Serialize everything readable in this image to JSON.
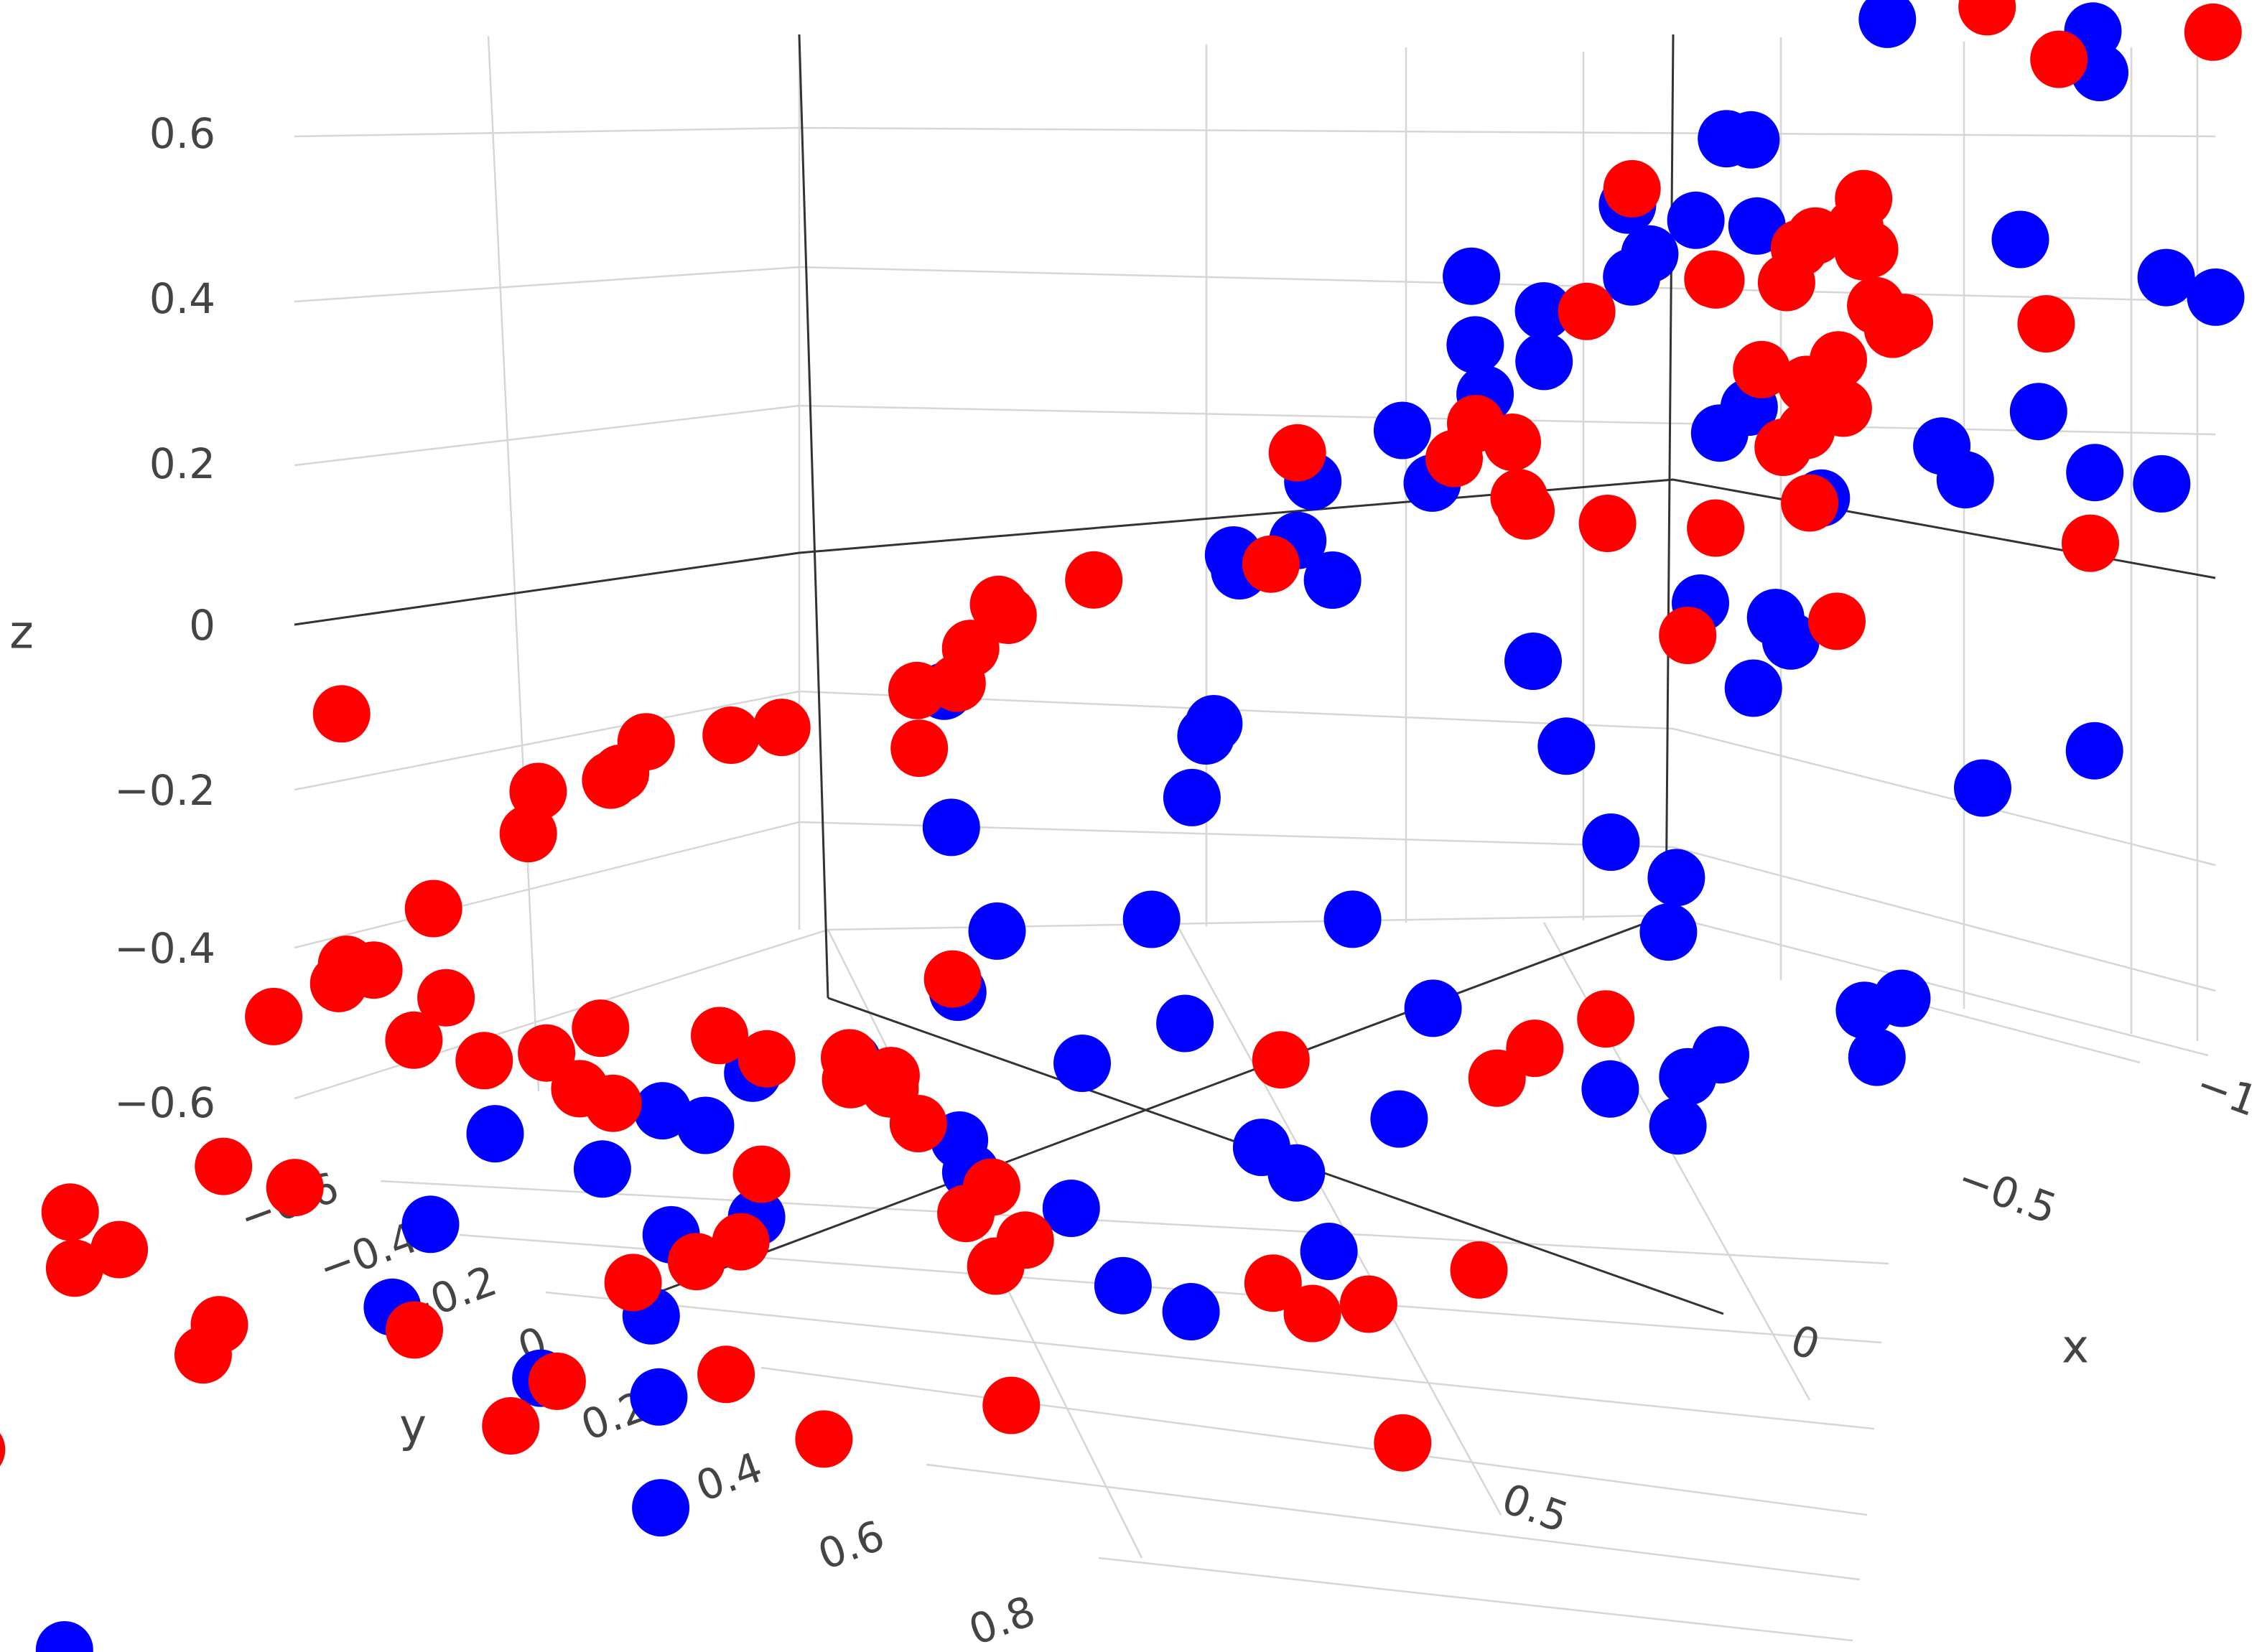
{
  "chart_data": {
    "type": "scatter",
    "projection": "3d",
    "axes": {
      "x": {
        "label": "x",
        "ticks": [
          "−1",
          "−0.5",
          "0",
          "0.5"
        ]
      },
      "y": {
        "label": "y",
        "ticks": [
          "−0.6",
          "−0.4",
          "−0.2",
          "0",
          "0.2",
          "0.4",
          "0.6",
          "0.8"
        ]
      },
      "z": {
        "label": "z",
        "ticks": [
          "0.6",
          "0.4",
          "0.2",
          "0",
          "−0.2",
          "−0.4",
          "−0.6"
        ]
      }
    },
    "grid": true,
    "legend": "none",
    "colors": {
      "series1": "#0000ff",
      "series2": "#ff0000"
    },
    "series": [
      {
        "color": "#0000ff",
        "points": [
          [
            -0.27,
            0.02,
            0.74
          ],
          [
            -0.27,
            0.02,
            0.64
          ],
          [
            -0.52,
            0.04,
            0.72
          ],
          [
            -0.53,
            0.04,
            0.61
          ],
          [
            -0.62,
            0.11,
            0.58
          ],
          [
            -0.16,
            0.06,
            0.5
          ],
          [
            -0.12,
            0.05,
            0.5
          ],
          [
            -0.1,
            0.13,
            0.45
          ],
          [
            -0.12,
            0.08,
            0.4
          ],
          [
            -0.14,
            0.16,
            0.36
          ],
          [
            -0.12,
            0.02,
            0.36
          ],
          [
            -0.02,
            0.04,
            0.34
          ],
          [
            0.02,
            0.11,
            0.3
          ],
          [
            0.04,
            0.16,
            0.28
          ],
          [
            -0.03,
            0.21,
            0.23
          ],
          [
            0.03,
            0.24,
            0.2
          ],
          [
            -0.18,
            0.28,
            0.3
          ],
          [
            0.15,
            0.07,
            0.34
          ],
          [
            -0.72,
            0.13,
            0.29
          ],
          [
            -0.73,
            0.09,
            0.24
          ],
          [
            -0.3,
            0.21,
            0.15
          ],
          [
            -0.24,
            0.13,
            0.15
          ],
          [
            -0.47,
            0.06,
            0.33
          ],
          [
            0.18,
            0.2,
            0.12
          ],
          [
            0.08,
            0.3,
            0.08
          ],
          [
            0.1,
            0.34,
            0.06
          ],
          [
            -0.77,
            0.02,
            0.28
          ],
          [
            -0.45,
            0.12,
            0.07
          ],
          [
            -0.75,
            0.16,
            0.01
          ],
          [
            -0.72,
            0.2,
            0.05
          ],
          [
            -0.62,
            0.17,
            0.13
          ],
          [
            -0.11,
            0.33,
            0.16
          ],
          [
            0.06,
            0.38,
            0.1
          ],
          [
            0.04,
            0.3,
            0.02
          ],
          [
            -0.37,
            0.17,
            0.03
          ],
          [
            -0.7,
            0.31,
            0.1
          ],
          [
            -0.36,
            0.28,
            -0.06
          ],
          [
            -0.64,
            0.43,
            -0.06
          ],
          [
            -0.92,
            0.1,
            -0.02
          ],
          [
            -1.0,
            0.0,
            -0.12
          ],
          [
            -0.47,
            0.3,
            -0.08
          ],
          [
            -0.32,
            0.41,
            -0.07
          ],
          [
            -0.55,
            0.39,
            -0.14
          ],
          [
            -0.37,
            0.42,
            -0.19
          ],
          [
            0.08,
            0.39,
            -0.15
          ],
          [
            0.2,
            0.28,
            -0.18
          ],
          [
            0.19,
            0.31,
            -0.27
          ],
          [
            -0.48,
            0.47,
            -0.31
          ],
          [
            -0.3,
            0.57,
            -0.35
          ],
          [
            -0.72,
            0.31,
            -0.34
          ],
          [
            -0.79,
            0.26,
            -0.32
          ],
          [
            -0.52,
            0.44,
            -0.38
          ],
          [
            -0.01,
            0.52,
            -0.35
          ],
          [
            -0.64,
            0.55,
            -0.41
          ],
          [
            0.25,
            0.45,
            -0.38
          ],
          [
            0.26,
            0.48,
            -0.45
          ],
          [
            -0.33,
            0.76,
            -0.4
          ],
          [
            -0.2,
            0.75,
            -0.45
          ],
          [
            0.32,
            0.63,
            -0.48
          ],
          [
            0.17,
            0.66,
            -0.46
          ],
          [
            -0.27,
            0.93,
            -0.47
          ],
          [
            0.33,
            0.71,
            -0.49
          ],
          [
            0.27,
            0.82,
            -0.52
          ],
          [
            -0.06,
            0.95,
            -0.55
          ],
          [
            0.21,
            0.77,
            -0.49
          ],
          [
            0.05,
            0.94,
            -0.57
          ],
          [
            -0.33,
            0.97,
            -0.5
          ],
          [
            -0.47,
            0.77,
            -0.62
          ],
          [
            -0.62,
            0.59,
            -0.61
          ],
          [
            -0.43,
            0.77,
            -0.58
          ],
          [
            -0.85,
            0.5,
            -0.55
          ],
          [
            -0.76,
            0.46,
            -0.58
          ],
          [
            -0.7,
            0.55,
            -0.59
          ],
          [
            -0.88,
            0.55,
            -0.61
          ],
          [
            -0.78,
            0.66,
            -0.64
          ],
          [
            -0.47,
            0.94,
            -0.69
          ],
          [
            -0.66,
            0.9,
            -0.68
          ],
          [
            -0.56,
            0.95,
            -0.73
          ],
          [
            -0.29,
            1.24,
            -0.83
          ],
          [
            -0.1,
            1.08,
            -0.74
          ],
          [
            0.44,
            0.34,
            -0.08
          ],
          [
            0.42,
            0.35,
            -0.27
          ],
          [
            0.76,
            0.93,
            -1.1
          ],
          [
            -0.85,
            0.71,
            -0.55
          ],
          [
            -0.6,
            0.78,
            -0.55
          ],
          [
            -0.24,
            0.44,
            -0.54
          ],
          [
            -0.34,
            0.88,
            -0.6
          ],
          [
            0.12,
            0.9,
            -0.7
          ],
          [
            0.2,
            0.94,
            -0.76
          ],
          [
            0.55,
            0.75,
            -0.61
          ],
          [
            0.5,
            0.83,
            -0.69
          ],
          [
            0.37,
            0.84,
            -0.45
          ]
        ]
      },
      {
        "color": "#ff0000",
        "points": [
          [
            -0.42,
            0.05,
            0.66
          ],
          [
            -0.62,
            0.15,
            0.62
          ],
          [
            -0.68,
            0.05,
            0.6
          ],
          [
            -0.07,
            0.1,
            0.46
          ],
          [
            -0.36,
            0.12,
            0.43
          ],
          [
            -0.35,
            0.12,
            0.39
          ],
          [
            -0.43,
            0.18,
            0.38
          ],
          [
            -0.41,
            0.21,
            0.42
          ],
          [
            -0.38,
            0.2,
            0.4
          ],
          [
            -0.32,
            0.08,
            0.34
          ],
          [
            -0.19,
            0.12,
            0.33
          ],
          [
            -0.21,
            0.14,
            0.34
          ],
          [
            -0.1,
            0.17,
            0.32
          ],
          [
            -0.33,
            0.17,
            0.34
          ],
          [
            -0.55,
            0.27,
            0.34
          ],
          [
            -0.36,
            0.22,
            0.24
          ],
          [
            -0.46,
            0.23,
            0.25
          ],
          [
            -0.47,
            0.27,
            0.17
          ],
          [
            -0.4,
            0.21,
            0.21
          ],
          [
            -0.42,
            0.25,
            0.14
          ],
          [
            -0.63,
            0.31,
            0.33
          ],
          [
            -0.64,
            0.33,
            0.33
          ],
          [
            -0.63,
            0.37,
            0.24
          ],
          [
            -0.16,
            0.33,
            0.24
          ],
          [
            -0.12,
            0.26,
            0.18
          ],
          [
            0.01,
            0.36,
            0.23
          ],
          [
            -0.21,
            0.33,
            0.13
          ],
          [
            -0.1,
            0.3,
            0.18
          ],
          [
            -0.3,
            0.4,
            0.14
          ],
          [
            -0.3,
            0.32,
            0.08
          ],
          [
            -0.53,
            0.41,
            0.1
          ],
          [
            -0.65,
            0.42,
            0.13
          ],
          [
            -0.84,
            0.35,
            0.33
          ],
          [
            -1.02,
            0.46,
            0.06
          ],
          [
            -0.74,
            0.47,
            -0.02
          ],
          [
            -0.58,
            0.48,
            -0.02
          ],
          [
            -0.03,
            0.42,
            0.1
          ],
          [
            0.08,
            0.5,
            0.13
          ],
          [
            0.12,
            0.55,
            0.11
          ],
          [
            0.12,
            0.6,
            0.04
          ],
          [
            0.21,
            0.51,
            0.05
          ],
          [
            0.26,
            0.44,
            0.08
          ],
          [
            0.26,
            0.52,
            0.0
          ],
          [
            0.31,
            0.61,
            0.0
          ],
          [
            0.14,
            0.62,
            -0.04
          ],
          [
            0.38,
            0.6,
            -0.01
          ],
          [
            0.39,
            0.7,
            -0.01
          ],
          [
            0.46,
            0.65,
            -0.04
          ],
          [
            0.56,
            0.53,
            -0.04
          ],
          [
            0.52,
            0.67,
            -0.04
          ],
          [
            0.59,
            0.62,
            -0.12
          ],
          [
            0.57,
            0.73,
            -0.17
          ],
          [
            0.58,
            0.78,
            -0.23
          ],
          [
            0.67,
            0.73,
            -0.24
          ],
          [
            0.55,
            0.84,
            -0.22
          ],
          [
            0.45,
            0.82,
            -0.26
          ],
          [
            0.44,
            0.86,
            -0.3
          ],
          [
            0.23,
            0.97,
            -0.29
          ],
          [
            0.17,
            0.96,
            -0.29
          ],
          [
            0.12,
            0.97,
            -0.34
          ],
          [
            0.19,
            0.89,
            -0.29
          ],
          [
            0.07,
            0.98,
            -0.36
          ],
          [
            -0.12,
            0.91,
            -0.35
          ],
          [
            -0.06,
            0.94,
            -0.33
          ],
          [
            -0.18,
            0.96,
            -0.36
          ],
          [
            -0.25,
            0.98,
            -0.35
          ],
          [
            -0.19,
            0.93,
            -0.39
          ],
          [
            -0.34,
            1.03,
            -0.4
          ],
          [
            -0.23,
            1.09,
            -0.43
          ],
          [
            -0.3,
            1.17,
            -0.49
          ],
          [
            -0.53,
            1.12,
            -0.46
          ],
          [
            -0.57,
            1.15,
            -0.56
          ],
          [
            -0.51,
            1.07,
            -0.56
          ],
          [
            -0.43,
            1.06,
            -0.52
          ],
          [
            -0.64,
            0.93,
            -0.39
          ],
          [
            -0.85,
            0.86,
            -0.43
          ],
          [
            -0.83,
            0.88,
            -0.46
          ],
          [
            -0.92,
            0.85,
            -0.4
          ],
          [
            -0.95,
            1.0,
            -0.68
          ],
          [
            -0.87,
            1.04,
            -0.7
          ],
          [
            -0.67,
            1.22,
            -0.73
          ],
          [
            -0.56,
            1.31,
            -0.72
          ],
          [
            -0.77,
            1.01,
            -0.72
          ],
          [
            -0.76,
            1.04,
            -0.66
          ],
          [
            -1.05,
            1.16,
            -0.85
          ],
          [
            -0.03,
            1.12,
            -0.69
          ],
          [
            0.0,
            1.14,
            -0.74
          ],
          [
            -0.12,
            1.06,
            -0.56
          ],
          [
            0.0,
            1.02,
            -0.6
          ],
          [
            0.24,
            1.03,
            -0.64
          ],
          [
            0.53,
            0.99,
            -0.67
          ],
          [
            0.57,
            0.94,
            -0.65
          ],
          [
            0.65,
            1.11,
            -0.73
          ],
          [
            0.8,
            0.74,
            -0.51
          ],
          [
            0.65,
            0.97,
            -0.52
          ],
          [
            1.11,
            0.36,
            -0.04
          ],
          [
            0.93,
            0.58,
            -0.37
          ],
          [
            1.03,
            0.69,
            -0.66
          ],
          [
            0.53,
            0.9,
            -0.48
          ],
          [
            0.73,
            0.95,
            -0.47
          ],
          [
            -0.33,
            1.21,
            -0.66
          ],
          [
            -0.18,
            0.86,
            -0.27
          ],
          [
            0.1,
            0.85,
            -0.33
          ]
        ]
      }
    ]
  }
}
